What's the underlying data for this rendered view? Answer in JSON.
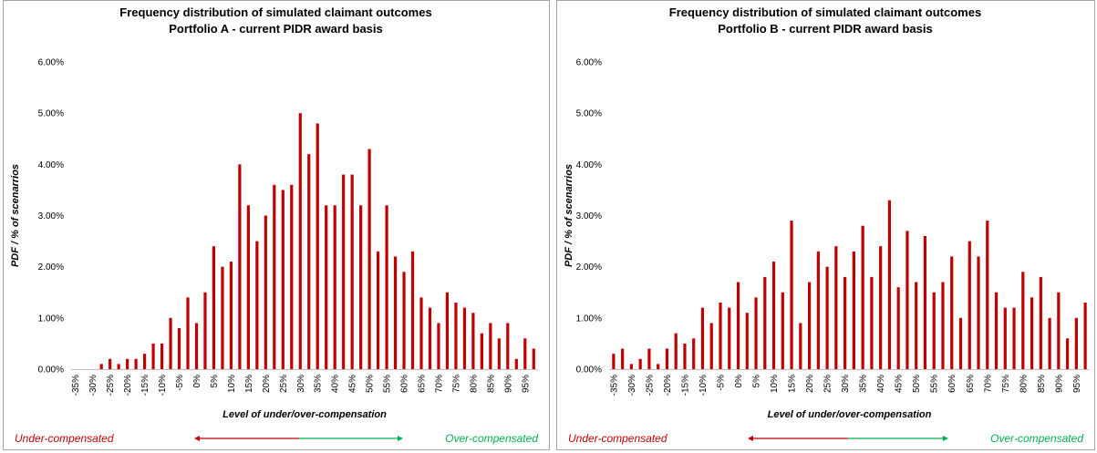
{
  "chart_data": [
    {
      "type": "bar",
      "title": "Frequency distribution of simulated claimant outcomes",
      "subtitle": "Portfolio A - current PIDR award basis",
      "x_label": "Level of under/over-compensation",
      "y_label": "PDF / % of scenarrios",
      "annotations": [
        "Under-compensated",
        "Over-compensated"
      ],
      "categories": [
        "-35%",
        null,
        "-30%",
        null,
        "-25%",
        null,
        "-20%",
        null,
        "-15%",
        null,
        "-10%",
        null,
        "-5%",
        null,
        "0%",
        null,
        "5%",
        null,
        "10%",
        null,
        "15%",
        null,
        "20%",
        null,
        "25%",
        null,
        "30%",
        null,
        "35%",
        null,
        "40%",
        null,
        "45%",
        null,
        "50%",
        null,
        "55%",
        null,
        "60%",
        null,
        "65%",
        null,
        "70%",
        null,
        "75%",
        null,
        "80%",
        null,
        "85%",
        null,
        "90%",
        null,
        "95%",
        null
      ],
      "values": [
        0,
        0,
        0,
        0.1,
        0.2,
        0.1,
        0.2,
        0.2,
        0.3,
        0.5,
        0.5,
        1.0,
        0.8,
        1.4,
        0.9,
        1.5,
        2.4,
        2.0,
        2.1,
        4.0,
        3.2,
        2.5,
        3.0,
        3.6,
        3.5,
        3.6,
        5.0,
        4.2,
        4.8,
        3.2,
        3.2,
        3.8,
        3.8,
        3.2,
        4.3,
        2.3,
        3.2,
        2.2,
        1.9,
        2.3,
        1.4,
        1.2,
        0.9,
        1.5,
        1.3,
        1.2,
        1.1,
        0.7,
        0.9,
        0.6,
        0.9,
        0.2,
        0.6,
        0.4
      ],
      "color": "#c00000",
      "ylim": [
        0,
        6
      ],
      "yticks": [
        {
          "value": 0,
          "label": "0.00%"
        },
        {
          "value": 1,
          "label": "1.00%"
        },
        {
          "value": 2,
          "label": "2.00%"
        },
        {
          "value": 3,
          "label": "3.00%"
        },
        {
          "value": 4,
          "label": "4.00%"
        },
        {
          "value": 5,
          "label": "5.00%"
        },
        {
          "value": 6,
          "label": "6.00%"
        }
      ],
      "grid": false
    },
    {
      "type": "bar",
      "title": "Frequency distribution of simulated claimant outcomes",
      "subtitle": "Portfolio B - current PIDR award basis",
      "x_label": "Level of under/over-compensation",
      "y_label": "PDF / % of scenarrios",
      "annotations": [
        "Under-compensated",
        "Over-compensated"
      ],
      "categories": [
        "-35%",
        null,
        "-30%",
        null,
        "-25%",
        null,
        "-20%",
        null,
        "-15%",
        null,
        "-10%",
        null,
        "-5%",
        null,
        "0%",
        null,
        "5%",
        null,
        "10%",
        null,
        "15%",
        null,
        "20%",
        null,
        "25%",
        null,
        "30%",
        null,
        "35%",
        null,
        "40%",
        null,
        "45%",
        null,
        "50%",
        null,
        "55%",
        null,
        "60%",
        null,
        "65%",
        null,
        "70%",
        null,
        "75%",
        null,
        "80%",
        null,
        "85%",
        null,
        "90%",
        null,
        "95%",
        null
      ],
      "values": [
        0.3,
        0.4,
        0.1,
        0.2,
        0.4,
        0.1,
        0.4,
        0.7,
        0.5,
        0.6,
        1.2,
        0.9,
        1.3,
        1.2,
        1.7,
        1.1,
        1.4,
        1.8,
        2.1,
        1.5,
        2.9,
        0.9,
        1.7,
        2.3,
        2.0,
        2.4,
        1.8,
        2.3,
        2.8,
        1.8,
        2.4,
        3.3,
        1.6,
        2.7,
        1.7,
        2.6,
        1.5,
        1.7,
        2.2,
        1.0,
        2.5,
        2.2,
        2.9,
        1.5,
        1.2,
        1.2,
        1.9,
        1.4,
        1.8,
        1.0,
        1.5,
        0.6,
        1.0,
        1.3
      ],
      "color": "#c00000",
      "ylim": [
        0,
        6
      ],
      "yticks": [
        {
          "value": 0,
          "label": "0.00%"
        },
        {
          "value": 1,
          "label": "1.00%"
        },
        {
          "value": 2,
          "label": "2.00%"
        },
        {
          "value": 3,
          "label": "3.00%"
        },
        {
          "value": 4,
          "label": "4.00%"
        },
        {
          "value": 5,
          "label": "5.00%"
        },
        {
          "value": 6,
          "label": "6.00%"
        }
      ],
      "grid": false
    }
  ]
}
